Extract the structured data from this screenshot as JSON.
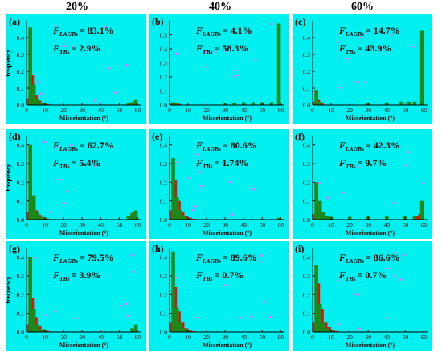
{
  "column_headers": [
    "20%",
    "40%",
    "60%"
  ],
  "colors": {
    "panel_bg": "#00f0f0",
    "bar_red": "#dd1010",
    "bar_green": "#1a8a1a",
    "speckle": "#ff66ff",
    "axis": "#000000"
  },
  "chart_data": [
    {
      "type": "bar",
      "panel": "(a)",
      "annotations": {
        "lagb_label": "F",
        "lagb_sub": "LAGBs",
        "lagb_value": "= 83.1%",
        "tb_label": "F",
        "tb_sub": "TBs",
        "tb_value": "= 2.9%"
      },
      "xlabel": "Misorientation (°)",
      "ylabel": "frequency",
      "xlim": [
        0,
        62
      ],
      "ylim": [
        0,
        0.5
      ],
      "xticks": [
        0,
        10,
        20,
        30,
        40,
        50,
        60
      ],
      "yticks": [
        0.0,
        0.1,
        0.2,
        0.3,
        0.4
      ],
      "series": [
        {
          "color": "red",
          "x": [
            1,
            3,
            5,
            7,
            9,
            11,
            13
          ],
          "values": [
            0.04,
            0.18,
            0.06,
            0.025,
            0.012,
            0.006,
            0.003
          ]
        },
        {
          "color": "green",
          "x": [
            2,
            4,
            6,
            8,
            10,
            55,
            57,
            59
          ],
          "values": [
            0.46,
            0.12,
            0.035,
            0.015,
            0.008,
            0.012,
            0.018,
            0.03
          ]
        }
      ]
    },
    {
      "type": "bar",
      "panel": "(b)",
      "annotations": {
        "lagb_label": "F",
        "lagb_sub": "LAGBs",
        "lagb_value": "= 4.1%",
        "tb_label": "F",
        "tb_sub": "TBs",
        "tb_value": "= 58.3%"
      },
      "xlabel": "",
      "ylabel": "",
      "xlim": [
        0,
        62
      ],
      "ylim": [
        0,
        0.6
      ],
      "xticks": [
        0,
        10,
        20,
        30,
        40,
        50,
        60
      ],
      "yticks": [
        0.0,
        0.1,
        0.2,
        0.3,
        0.4,
        0.5
      ],
      "series": [
        {
          "color": "red",
          "x": [
            1,
            3,
            5
          ],
          "values": [
            0.01,
            0.015,
            0.008
          ]
        },
        {
          "color": "green",
          "x": [
            2,
            4,
            30,
            35,
            40,
            45,
            50,
            55,
            59
          ],
          "values": [
            0.02,
            0.01,
            0.01,
            0.015,
            0.02,
            0.02,
            0.02,
            0.02,
            0.58
          ]
        }
      ]
    },
    {
      "type": "bar",
      "panel": "(c)",
      "annotations": {
        "lagb_label": "F",
        "lagb_sub": "LAGBs",
        "lagb_value": "= 14.7%",
        "tb_label": "F",
        "tb_sub": "TBs",
        "tb_value": "= 43.9%"
      },
      "xlabel": "",
      "ylabel": "",
      "xlim": [
        0,
        62
      ],
      "ylim": [
        0,
        0.5
      ],
      "xticks": [
        0,
        10,
        20,
        30,
        40,
        50,
        60
      ],
      "yticks": [
        0.0,
        0.1,
        0.2,
        0.3,
        0.4
      ],
      "series": [
        {
          "color": "red",
          "x": [
            1,
            3,
            5
          ],
          "values": [
            0.02,
            0.03,
            0.01
          ]
        },
        {
          "color": "green",
          "x": [
            2,
            4,
            30,
            40,
            48,
            52,
            55,
            59
          ],
          "values": [
            0.09,
            0.02,
            0.01,
            0.015,
            0.02,
            0.02,
            0.02,
            0.44
          ]
        }
      ]
    },
    {
      "type": "bar",
      "panel": "(d)",
      "annotations": {
        "lagb_label": "F",
        "lagb_sub": "LAGBs",
        "lagb_value": "= 62.7%",
        "tb_label": "F",
        "tb_sub": "TBs",
        "tb_value": "= 5.4%"
      },
      "xlabel": "",
      "ylabel": "frequency",
      "xlim": [
        0,
        62
      ],
      "ylim": [
        0,
        0.45
      ],
      "xticks": [
        0,
        10,
        20,
        30,
        40,
        50,
        60
      ],
      "yticks": [
        0.0,
        0.1,
        0.2,
        0.3,
        0.4
      ],
      "series": [
        {
          "color": "red",
          "x": [
            1,
            3,
            5,
            7,
            9,
            11,
            56,
            58
          ],
          "values": [
            0.04,
            0.12,
            0.05,
            0.025,
            0.012,
            0.006,
            0.02,
            0.04
          ]
        },
        {
          "color": "green",
          "x": [
            2,
            4,
            6,
            8,
            10,
            55,
            57,
            59
          ],
          "values": [
            0.4,
            0.13,
            0.04,
            0.015,
            0.008,
            0.02,
            0.035,
            0.05
          ]
        }
      ]
    },
    {
      "type": "bar",
      "panel": "(e)",
      "annotations": {
        "lagb_label": "F",
        "lagb_sub": "LAGBs",
        "lagb_value": "= 80.6%",
        "tb_label": "F",
        "tb_sub": "TBs",
        "tb_value": "= 1.74%"
      },
      "xlabel": "",
      "ylabel": "",
      "xlim": [
        0,
        62
      ],
      "ylim": [
        0,
        0.45
      ],
      "xticks": [
        0,
        10,
        20,
        30,
        40,
        50,
        60
      ],
      "yticks": [
        0.0,
        0.1,
        0.2,
        0.3,
        0.4
      ],
      "series": [
        {
          "color": "red",
          "x": [
            1,
            3,
            5,
            7,
            9,
            11,
            13
          ],
          "values": [
            0.05,
            0.21,
            0.1,
            0.04,
            0.02,
            0.01,
            0.004
          ]
        },
        {
          "color": "green",
          "x": [
            2,
            4,
            6,
            8,
            10,
            59
          ],
          "values": [
            0.33,
            0.12,
            0.05,
            0.02,
            0.008,
            0.01
          ]
        }
      ]
    },
    {
      "type": "bar",
      "panel": "(f)",
      "annotations": {
        "lagb_label": "F",
        "lagb_sub": "LAGBs",
        "lagb_value": "= 42.3%",
        "tb_label": "F",
        "tb_sub": "TBs",
        "tb_value": "= 9.7%"
      },
      "xlabel": "",
      "ylabel": "",
      "xlim": [
        0,
        62
      ],
      "ylim": [
        0,
        0.45
      ],
      "xticks": [
        0,
        10,
        20,
        30,
        40,
        50,
        60
      ],
      "yticks": [
        0.0,
        0.1,
        0.2,
        0.3,
        0.4
      ],
      "series": [
        {
          "color": "red",
          "x": [
            1,
            3,
            5,
            7,
            9,
            56,
            58
          ],
          "values": [
            0.03,
            0.08,
            0.04,
            0.02,
            0.01,
            0.02,
            0.03
          ]
        },
        {
          "color": "green",
          "x": [
            2,
            4,
            6,
            8,
            10,
            20,
            30,
            40,
            50,
            55,
            59
          ],
          "values": [
            0.2,
            0.1,
            0.04,
            0.02,
            0.015,
            0.015,
            0.02,
            0.02,
            0.02,
            0.02,
            0.1
          ]
        }
      ]
    },
    {
      "type": "bar",
      "panel": "(g)",
      "annotations": {
        "lagb_label": "F",
        "lagb_sub": "LAGBs",
        "lagb_value": "= 79.5%",
        "tb_label": "F",
        "tb_sub": "TBs",
        "tb_value": "= 3.9%"
      },
      "xlabel": "",
      "ylabel": "frequency",
      "xlim": [
        0,
        62
      ],
      "ylim": [
        0,
        0.45
      ],
      "xticks": [
        0,
        10,
        20,
        30,
        40,
        50,
        60
      ],
      "yticks": [
        0.0,
        0.1,
        0.2,
        0.3,
        0.4
      ],
      "series": [
        {
          "color": "red",
          "x": [
            1,
            3,
            5,
            7,
            9,
            11,
            13
          ],
          "values": [
            0.04,
            0.18,
            0.08,
            0.03,
            0.015,
            0.007,
            0.003
          ]
        },
        {
          "color": "green",
          "x": [
            2,
            4,
            6,
            8,
            10,
            57,
            59
          ],
          "values": [
            0.4,
            0.12,
            0.04,
            0.015,
            0.008,
            0.02,
            0.04
          ]
        }
      ]
    },
    {
      "type": "bar",
      "panel": "(h)",
      "annotations": {
        "lagb_label": "F",
        "lagb_sub": "LAGBs",
        "lagb_value": "= 89.6%",
        "tb_label": "F",
        "tb_sub": "TBs",
        "tb_value": "= 0.7%"
      },
      "xlabel": "",
      "ylabel": "",
      "xlim": [
        0,
        62
      ],
      "ylim": [
        0,
        0.45
      ],
      "xticks": [
        0,
        10,
        20,
        30,
        40,
        50,
        60
      ],
      "yticks": [
        0.0,
        0.1,
        0.2,
        0.3,
        0.4
      ],
      "series": [
        {
          "color": "red",
          "x": [
            1,
            3,
            5,
            7,
            9,
            11,
            13
          ],
          "values": [
            0.05,
            0.24,
            0.11,
            0.05,
            0.02,
            0.01,
            0.004
          ]
        },
        {
          "color": "green",
          "x": [
            2,
            4,
            6,
            8,
            10
          ],
          "values": [
            0.43,
            0.13,
            0.05,
            0.02,
            0.008
          ]
        }
      ]
    },
    {
      "type": "bar",
      "panel": "(i)",
      "annotations": {
        "lagb_label": "F",
        "lagb_sub": "LAGBs",
        "lagb_value": "= 86.6%",
        "tb_label": "F",
        "tb_sub": "TBs",
        "tb_value": "= 0.7%"
      },
      "xlabel": "",
      "ylabel": "",
      "xlim": [
        0,
        62
      ],
      "ylim": [
        0,
        0.45
      ],
      "xticks": [
        0,
        10,
        20,
        30,
        40,
        50,
        60
      ],
      "yticks": [
        0.0,
        0.1,
        0.2,
        0.3,
        0.4
      ],
      "series": [
        {
          "color": "red",
          "x": [
            1,
            3,
            5,
            7,
            9,
            11,
            13
          ],
          "values": [
            0.05,
            0.26,
            0.12,
            0.05,
            0.025,
            0.012,
            0.005
          ]
        },
        {
          "color": "green",
          "x": [
            2,
            4,
            6,
            8,
            10
          ],
          "values": [
            0.36,
            0.15,
            0.05,
            0.02,
            0.008
          ]
        }
      ]
    }
  ],
  "shared_xlabel": "Misorientation (°)"
}
